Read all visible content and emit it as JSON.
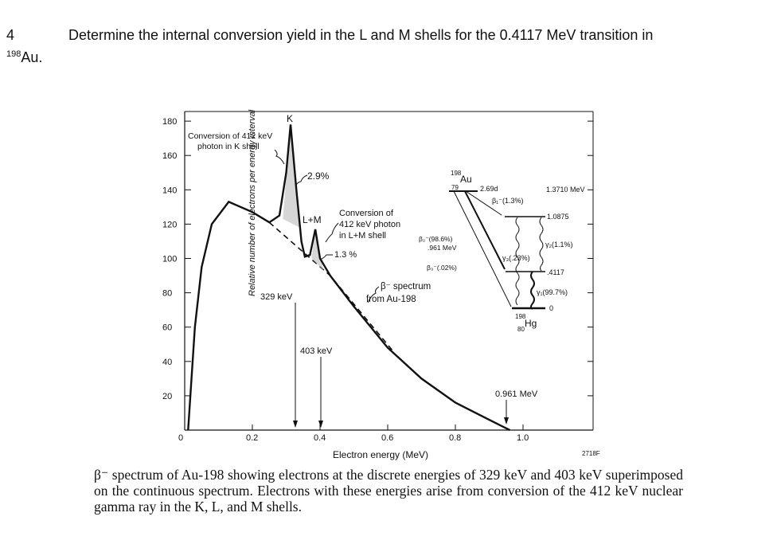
{
  "question": {
    "number": "4",
    "text": "Determine the internal conversion yield in the L and M shells for the 0.4117 MeV transition in",
    "isotope_mass": "198",
    "isotope_symbol": "Au."
  },
  "chart_data": {
    "type": "line",
    "title": "",
    "xlabel": "Electron energy (MeV)",
    "ylabel": "Relative number of electrons per energy interval",
    "xlim": [
      0,
      1.2
    ],
    "ylim": [
      0,
      180
    ],
    "xticks": [
      "0",
      "0.2",
      "0.4",
      "0.6",
      "0.8",
      "1.0"
    ],
    "yticks": [
      "20",
      "40",
      "60",
      "80",
      "100",
      "120",
      "140",
      "160",
      "180"
    ],
    "grid": false,
    "series": [
      {
        "x": [
          0.01,
          0.03,
          0.05,
          0.08,
          0.13,
          0.2,
          0.25,
          0.28,
          0.3,
          0.313,
          0.33,
          0.345,
          0.355,
          0.37,
          0.386,
          0.4,
          0.43,
          0.5,
          0.6,
          0.7,
          0.8,
          0.9,
          0.961
        ],
        "y": [
          0,
          60,
          95,
          120,
          133,
          127,
          121,
          125,
          150,
          178,
          140,
          110,
          101,
          102,
          117,
          100,
          90,
          72,
          48,
          30,
          16,
          6,
          0
        ]
      }
    ],
    "continuum_dashed": {
      "x": [
        0.25,
        0.43
      ],
      "y": [
        121,
        90
      ]
    },
    "annotations": {
      "k": "K",
      "k_note": "Conversion of 412 keV",
      "k_note2": "photon in K shell",
      "k_pct": "2.9%",
      "lm": "L+M",
      "lm_note": "Conversion of",
      "lm_note2": "412 keV photon",
      "lm_note3": "in L+M shell",
      "lm_pct": "1.3 %",
      "line329": "329 keV",
      "line403": "403 keV",
      "endpoint": "0.961 MeV",
      "beta_spec": "β⁻ spectrum",
      "beta_spec2": "from Au-198",
      "figid": "2718F"
    },
    "decay_scheme": {
      "parent_mass": "198",
      "parent_z": "79",
      "parent": "Au",
      "halflife": "2.69d",
      "q": "1.3710 MeV",
      "b1": "β₁⁻(1.3%)",
      "b2": "β₂⁻(98.6%)",
      "b2e": ".961 MeV",
      "b3": "β₃⁻(.02%)",
      "level1": "1.0875",
      "level2": ".4117",
      "level0": "0",
      "g1": "γ₁(99.7%)",
      "g2": "γ₂(1.1%)",
      "g3": "γ₃(.23%)",
      "daughter_mass": "198",
      "daughter_z": "80",
      "daughter": "Hg"
    }
  },
  "caption": "β⁻ spectrum of Au-198 showing electrons at the discrete energies of 329 keV and 403 keV superimposed on the continuous spectrum. Electrons with these energies arise from conversion of the 412 keV nuclear gamma ray in the K, L, and M shells."
}
